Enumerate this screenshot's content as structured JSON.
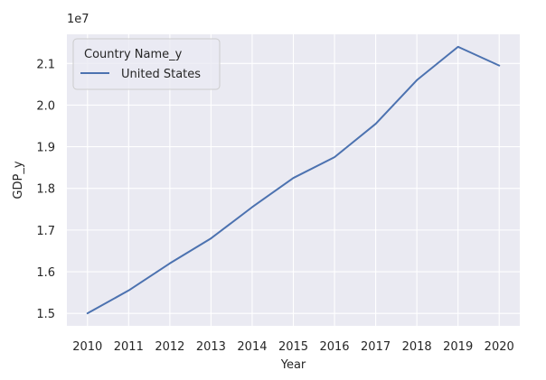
{
  "chart_data": {
    "type": "line",
    "title": "",
    "xlabel": "Year",
    "ylabel": "GDP_y",
    "offset_label": "1e7",
    "x": [
      2010,
      2011,
      2012,
      2013,
      2014,
      2015,
      2016,
      2017,
      2018,
      2019,
      2020
    ],
    "series": [
      {
        "name": "United States",
        "values": [
          1.5,
          1.555,
          1.62,
          1.68,
          1.755,
          1.825,
          1.875,
          1.955,
          2.06,
          2.14,
          2.095
        ],
        "color": "#4c72b0"
      }
    ],
    "xticks": [
      "2010",
      "2011",
      "2012",
      "2013",
      "2014",
      "2015",
      "2016",
      "2017",
      "2018",
      "2019",
      "2020"
    ],
    "yticks": [
      "1.5",
      "1.6",
      "1.7",
      "1.8",
      "1.9",
      "2.0",
      "2.1"
    ],
    "ylim": [
      1.47,
      2.17
    ],
    "grid": true,
    "legend": {
      "title": "Country Name_y",
      "placement": "top-left"
    },
    "colors": {
      "plot_background": "#eaeaf2",
      "grid": "#ffffff",
      "line": "#4c72b0"
    }
  }
}
